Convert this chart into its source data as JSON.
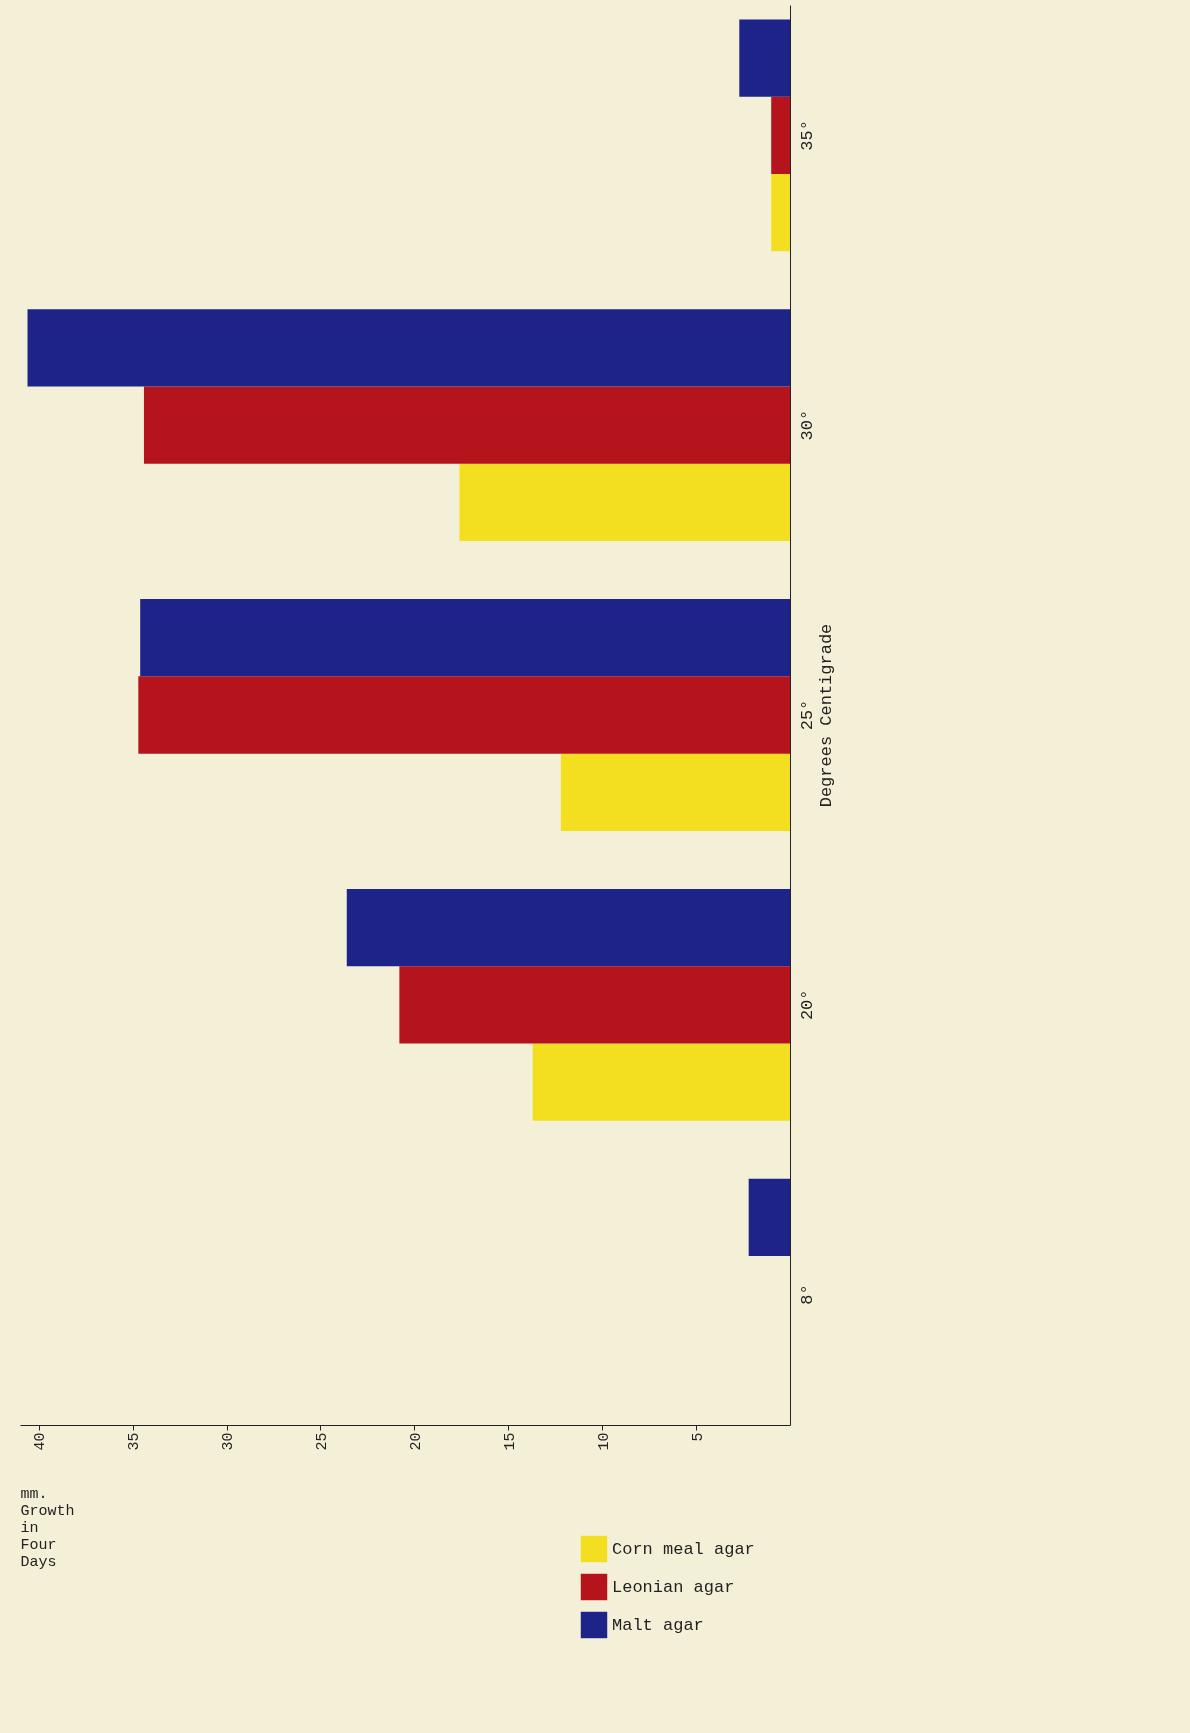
{
  "chart_data": {
    "type": "bar",
    "orientation": "horizontal",
    "xlabel": "mm. Growth in Four Days",
    "ylabel": "Degrees Centigrade",
    "categories": [
      "35°",
      "30°",
      "25°",
      "20°",
      "8°"
    ],
    "series": [
      {
        "name": "Corn meal agar",
        "color": "#f3df1f",
        "values": [
          1.0,
          17.6,
          12.2,
          13.7,
          null
        ]
      },
      {
        "name": "Leonian agar",
        "color": "#b5141c",
        "values": [
          1.0,
          34.4,
          34.7,
          20.8,
          null
        ]
      },
      {
        "name": "Malt agar",
        "color": "#1d2388",
        "values": [
          2.7,
          40.6,
          34.6,
          23.6,
          2.2
        ]
      }
    ],
    "xlim": [
      41,
      0
    ],
    "xticks": [
      5,
      10,
      15,
      20,
      25,
      30,
      35,
      40
    ],
    "grid": false,
    "legend": "bottom right"
  }
}
